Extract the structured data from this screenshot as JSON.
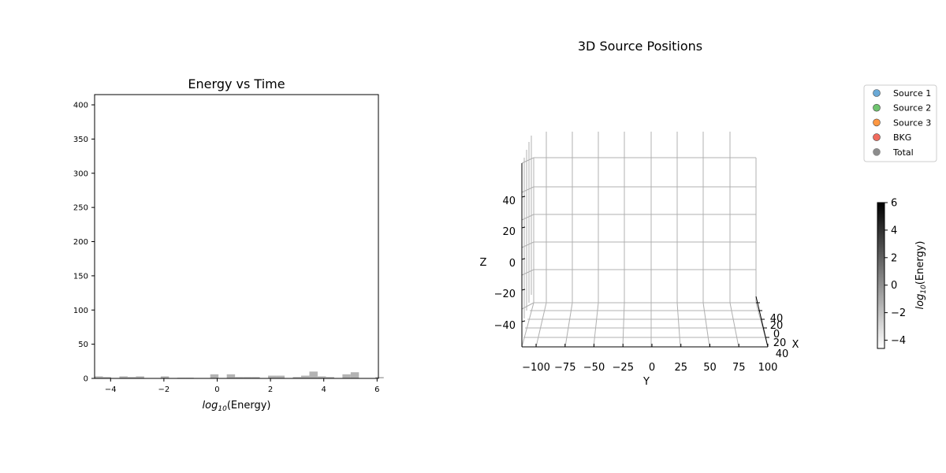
{
  "chart_data": [
    {
      "type": "bar",
      "title": "Energy vs Time",
      "xlabel_prefix": "log",
      "xlabel_sub": "10",
      "xlabel_rest": "(Energy)",
      "ylabel": "",
      "xlim": [
        -4.6,
        6.05
      ],
      "ylim": [
        0,
        415
      ],
      "xticks": [
        -4,
        -2,
        0,
        2,
        4,
        6
      ],
      "yticks": [
        0,
        50,
        100,
        150,
        200,
        250,
        300,
        350,
        400
      ],
      "bar_color": "#b3b3b3",
      "bin_width": 0.31,
      "bins": [
        {
          "x": -4.6,
          "count": 3
        },
        {
          "x": -4.29,
          "count": 2
        },
        {
          "x": -3.67,
          "count": 3
        },
        {
          "x": -3.36,
          "count": 2
        },
        {
          "x": -3.05,
          "count": 3
        },
        {
          "x": -2.12,
          "count": 3
        },
        {
          "x": -1.5,
          "count": 1
        },
        {
          "x": -1.19,
          "count": 1
        },
        {
          "x": -0.26,
          "count": 6
        },
        {
          "x": 0.36,
          "count": 6
        },
        {
          "x": 0.67,
          "count": 2
        },
        {
          "x": 0.98,
          "count": 2
        },
        {
          "x": 1.29,
          "count": 2
        },
        {
          "x": 1.91,
          "count": 4
        },
        {
          "x": 2.22,
          "count": 4
        },
        {
          "x": 2.84,
          "count": 2
        },
        {
          "x": 3.15,
          "count": 4
        },
        {
          "x": 3.46,
          "count": 10
        },
        {
          "x": 3.77,
          "count": 3
        },
        {
          "x": 4.08,
          "count": 2
        },
        {
          "x": 4.7,
          "count": 6
        },
        {
          "x": 5.01,
          "count": 9
        },
        {
          "x": 5.94,
          "count": 2
        }
      ]
    },
    {
      "type": "scatter",
      "title": "3D Source Positions",
      "xlabel": "X",
      "ylabel": "Y",
      "zlabel": "Z",
      "y_ticks": [
        -100,
        -75,
        -50,
        -25,
        0,
        25,
        50,
        75,
        100
      ],
      "z_ticks": [
        -40,
        -20,
        0,
        20,
        40
      ],
      "x_ticks": [
        "40",
        "20",
        "0",
        "20",
        "40"
      ],
      "legend": {
        "placement": "top-right",
        "entries": [
          {
            "name": "Source 1",
            "color": "#5aa0d2"
          },
          {
            "name": "Source 2",
            "color": "#5fbe5f"
          },
          {
            "name": "Source 3",
            "color": "#ff8c2e"
          },
          {
            "name": "BKG",
            "color": "#ee5b4d"
          },
          {
            "name": "Total",
            "color": "#808080"
          }
        ]
      },
      "colorbar": {
        "label_prefix": "log",
        "label_sub": "10",
        "label_rest": "(Energy)",
        "range": [
          -4.6,
          6
        ],
        "ticks": [
          -4,
          -2,
          0,
          2,
          4,
          6
        ],
        "cmap": [
          "#ffffff",
          "#000000"
        ]
      }
    }
  ]
}
